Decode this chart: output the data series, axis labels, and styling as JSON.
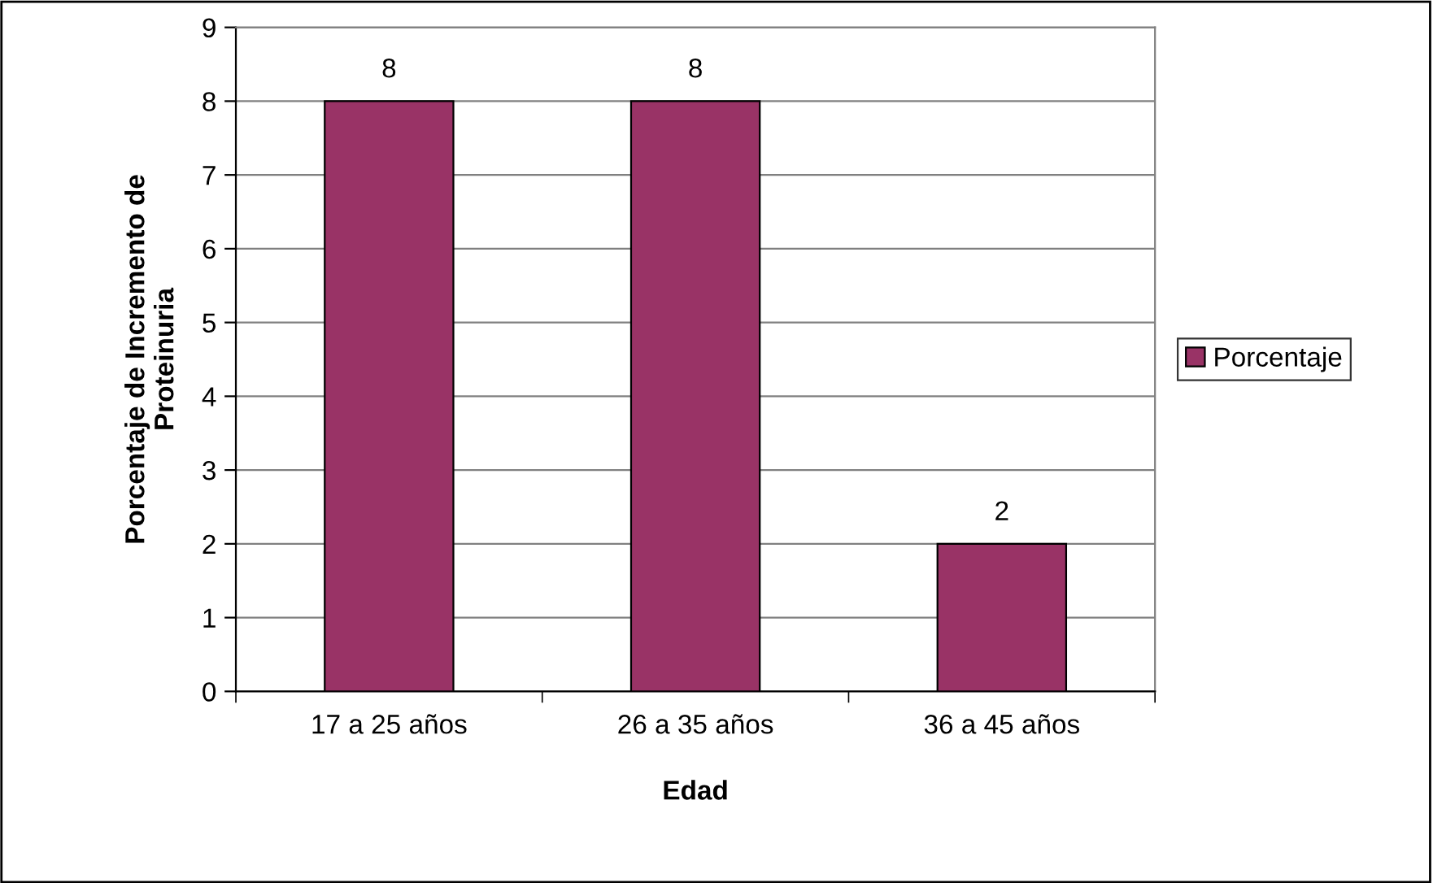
{
  "chart_data": {
    "type": "bar",
    "xlabel": "Edad",
    "ylabel": "Porcentaje de Incremento de\nProteinuria",
    "categories": [
      "17 a 25 años",
      "26 a 35 años",
      "36 a 45 años"
    ],
    "series": [
      {
        "name": "Porcentaje",
        "color": "#993366",
        "values": [
          8,
          8,
          2
        ]
      }
    ],
    "ylim": [
      0,
      9
    ],
    "yticks": [
      0,
      1,
      2,
      3,
      4,
      5,
      6,
      7,
      8,
      9
    ],
    "grid": "y",
    "legend": "right",
    "data_labels": true
  }
}
